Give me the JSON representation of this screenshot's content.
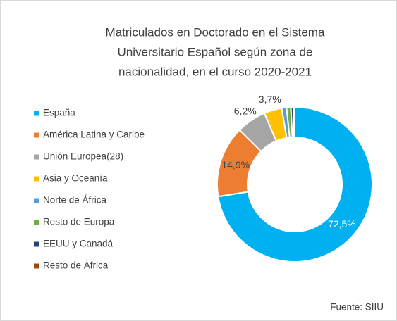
{
  "chart_data": {
    "type": "donut",
    "title": [
      "Matriculados en Doctorado en el Sistema",
      "Universitario Español según zona de",
      "nacionalidad, en el curso 2020-2021"
    ],
    "categories": [
      "España",
      "América Latina y Caribe",
      "Unión Europea(28)",
      "Asia y Oceanía",
      "Norte de África",
      "Resto de Europa",
      "EEUU y Canadá",
      "Resto de África"
    ],
    "values": [
      72.5,
      14.9,
      6.2,
      3.7,
      1.0,
      0.9,
      0.5,
      0.3
    ],
    "value_labels": [
      "72,5%",
      "14,9%",
      "6,2%",
      "3,7%",
      null,
      null,
      null,
      null
    ],
    "colors": [
      "#00b0f0",
      "#ed7d31",
      "#a5a5a5",
      "#ffc000",
      "#5b9bd5",
      "#70ad47",
      "#264478",
      "#9e480e"
    ],
    "legend": "left",
    "source": "Fuente: SIIU"
  }
}
